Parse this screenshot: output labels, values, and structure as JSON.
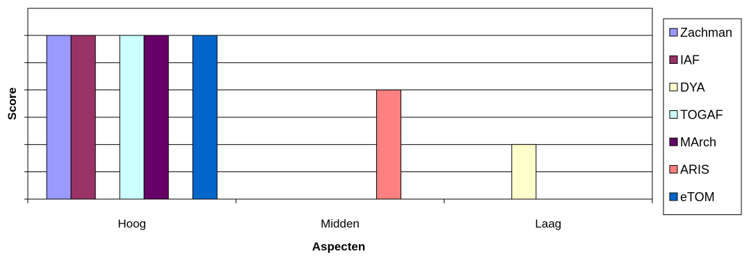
{
  "chart_data": {
    "type": "bar",
    "title": "",
    "xlabel": "Aspecten",
    "ylabel": "Score",
    "categories": [
      "Hoog",
      "Midden",
      "Laag"
    ],
    "ylim": [
      0,
      6
    ],
    "grid": true,
    "legend_position": "right",
    "series": [
      {
        "name": "Zachman",
        "color": "#9999ff",
        "values": [
          6,
          0,
          0
        ]
      },
      {
        "name": "IAF",
        "color": "#993366",
        "values": [
          6,
          0,
          0
        ]
      },
      {
        "name": "DYA",
        "color": "#ffffcc",
        "values": [
          0,
          0,
          2
        ]
      },
      {
        "name": "TOGAF",
        "color": "#ccffff",
        "values": [
          6,
          0,
          0
        ]
      },
      {
        "name": "MArch",
        "color": "#660066",
        "values": [
          6,
          0,
          0
        ]
      },
      {
        "name": "ARIS",
        "color": "#ff8080",
        "values": [
          0,
          4,
          0
        ]
      },
      {
        "name": "eTOM",
        "color": "#0066cc",
        "values": [
          6,
          0,
          0
        ]
      }
    ]
  }
}
